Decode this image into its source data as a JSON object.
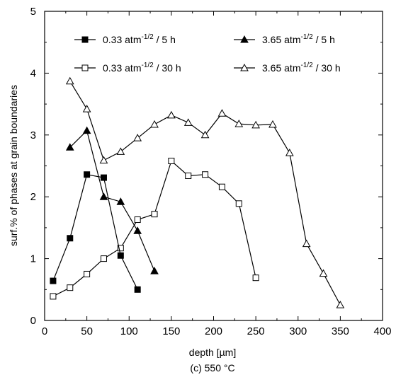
{
  "chart_data": {
    "type": "line",
    "title": "",
    "caption": "(c) 550 °C",
    "xlabel": "depth [µm]",
    "ylabel": "surf.% of phases at grain boundaries",
    "xlim": [
      0,
      400
    ],
    "ylim": [
      0,
      5
    ],
    "xticks": [
      0,
      50,
      100,
      150,
      200,
      250,
      300,
      350,
      400
    ],
    "yticks": [
      0,
      1,
      2,
      3,
      4,
      5
    ],
    "grid": false,
    "legend_position": "top",
    "series": [
      {
        "key": "s1",
        "label_main": "0.33 atm",
        "label_sup": "-1/2",
        "label_tail": " / 5 h",
        "marker": "square-filled",
        "x": [
          10,
          30,
          50,
          70,
          90,
          110
        ],
        "y": [
          0.64,
          1.33,
          2.36,
          2.31,
          1.05,
          0.5
        ]
      },
      {
        "key": "s2",
        "label_main": "0.33 atm",
        "label_sup": "-1/2",
        "label_tail": " / 30 h",
        "marker": "square-open",
        "x": [
          10,
          30,
          50,
          70,
          90,
          110,
          130,
          150,
          170,
          190,
          210,
          230,
          250
        ],
        "y": [
          0.39,
          0.53,
          0.75,
          1.0,
          1.17,
          1.63,
          1.72,
          2.58,
          2.34,
          2.36,
          2.16,
          1.89,
          0.69
        ]
      },
      {
        "key": "s3",
        "label_main": "3.65 atm",
        "label_sup": "-1/2",
        "label_tail": " / 5 h",
        "marker": "triangle-filled",
        "x": [
          30,
          50,
          70,
          90,
          110,
          130
        ],
        "y": [
          2.8,
          3.07,
          2.0,
          1.92,
          1.45,
          0.8
        ]
      },
      {
        "key": "s4",
        "label_main": "3.65 atm",
        "label_sup": "-1/2",
        "label_tail": " / 30 h",
        "marker": "triangle-open",
        "x": [
          30,
          50,
          70,
          90,
          110,
          130,
          150,
          170,
          190,
          210,
          230,
          250,
          270,
          290,
          310,
          330,
          350
        ],
        "y": [
          3.87,
          3.42,
          2.59,
          2.73,
          2.95,
          3.17,
          3.32,
          3.2,
          3.0,
          3.35,
          3.18,
          3.16,
          3.17,
          2.71,
          1.24,
          0.76,
          0.25
        ]
      }
    ]
  }
}
